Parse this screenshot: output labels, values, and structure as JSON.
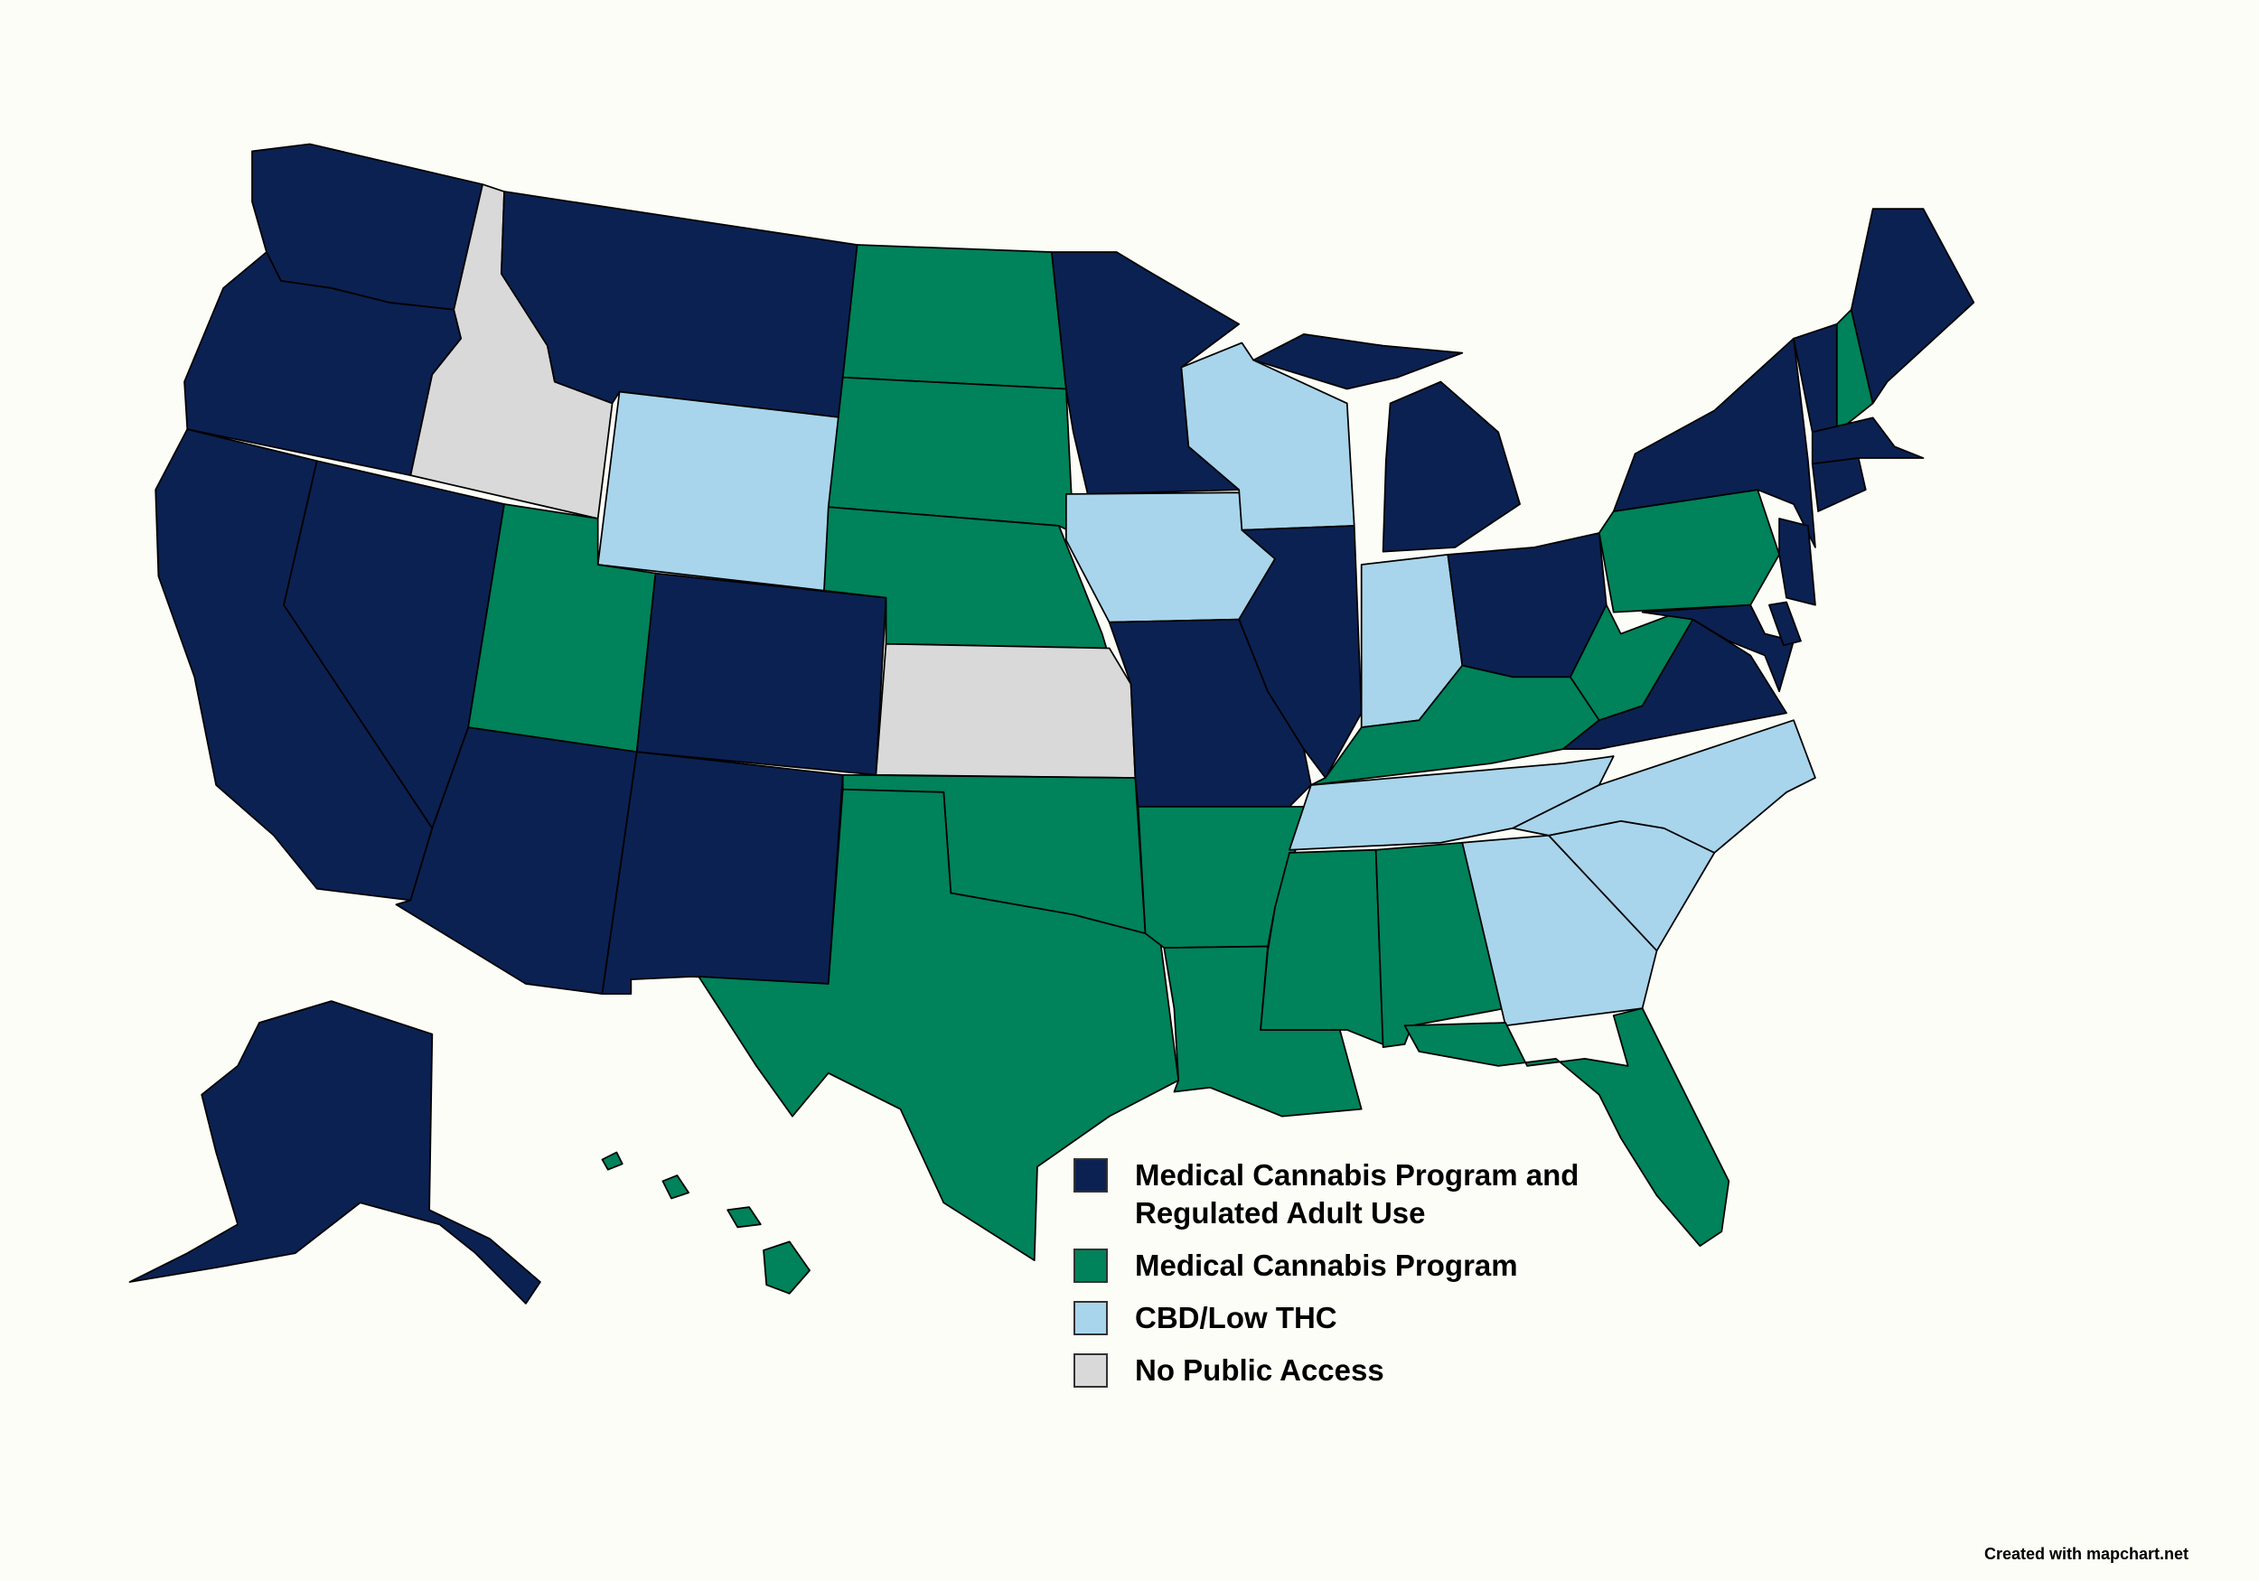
{
  "legend": {
    "items": [
      {
        "lines": [
          "Medical Cannabis Program and",
          "Regulated Adult Use"
        ]
      },
      {
        "lines": [
          "Medical Cannabis Program"
        ]
      },
      {
        "lines": [
          "CBD/Low THC"
        ]
      },
      {
        "lines": [
          "No Public Access"
        ]
      }
    ]
  },
  "credit": "Created with mapchart.net"
}
